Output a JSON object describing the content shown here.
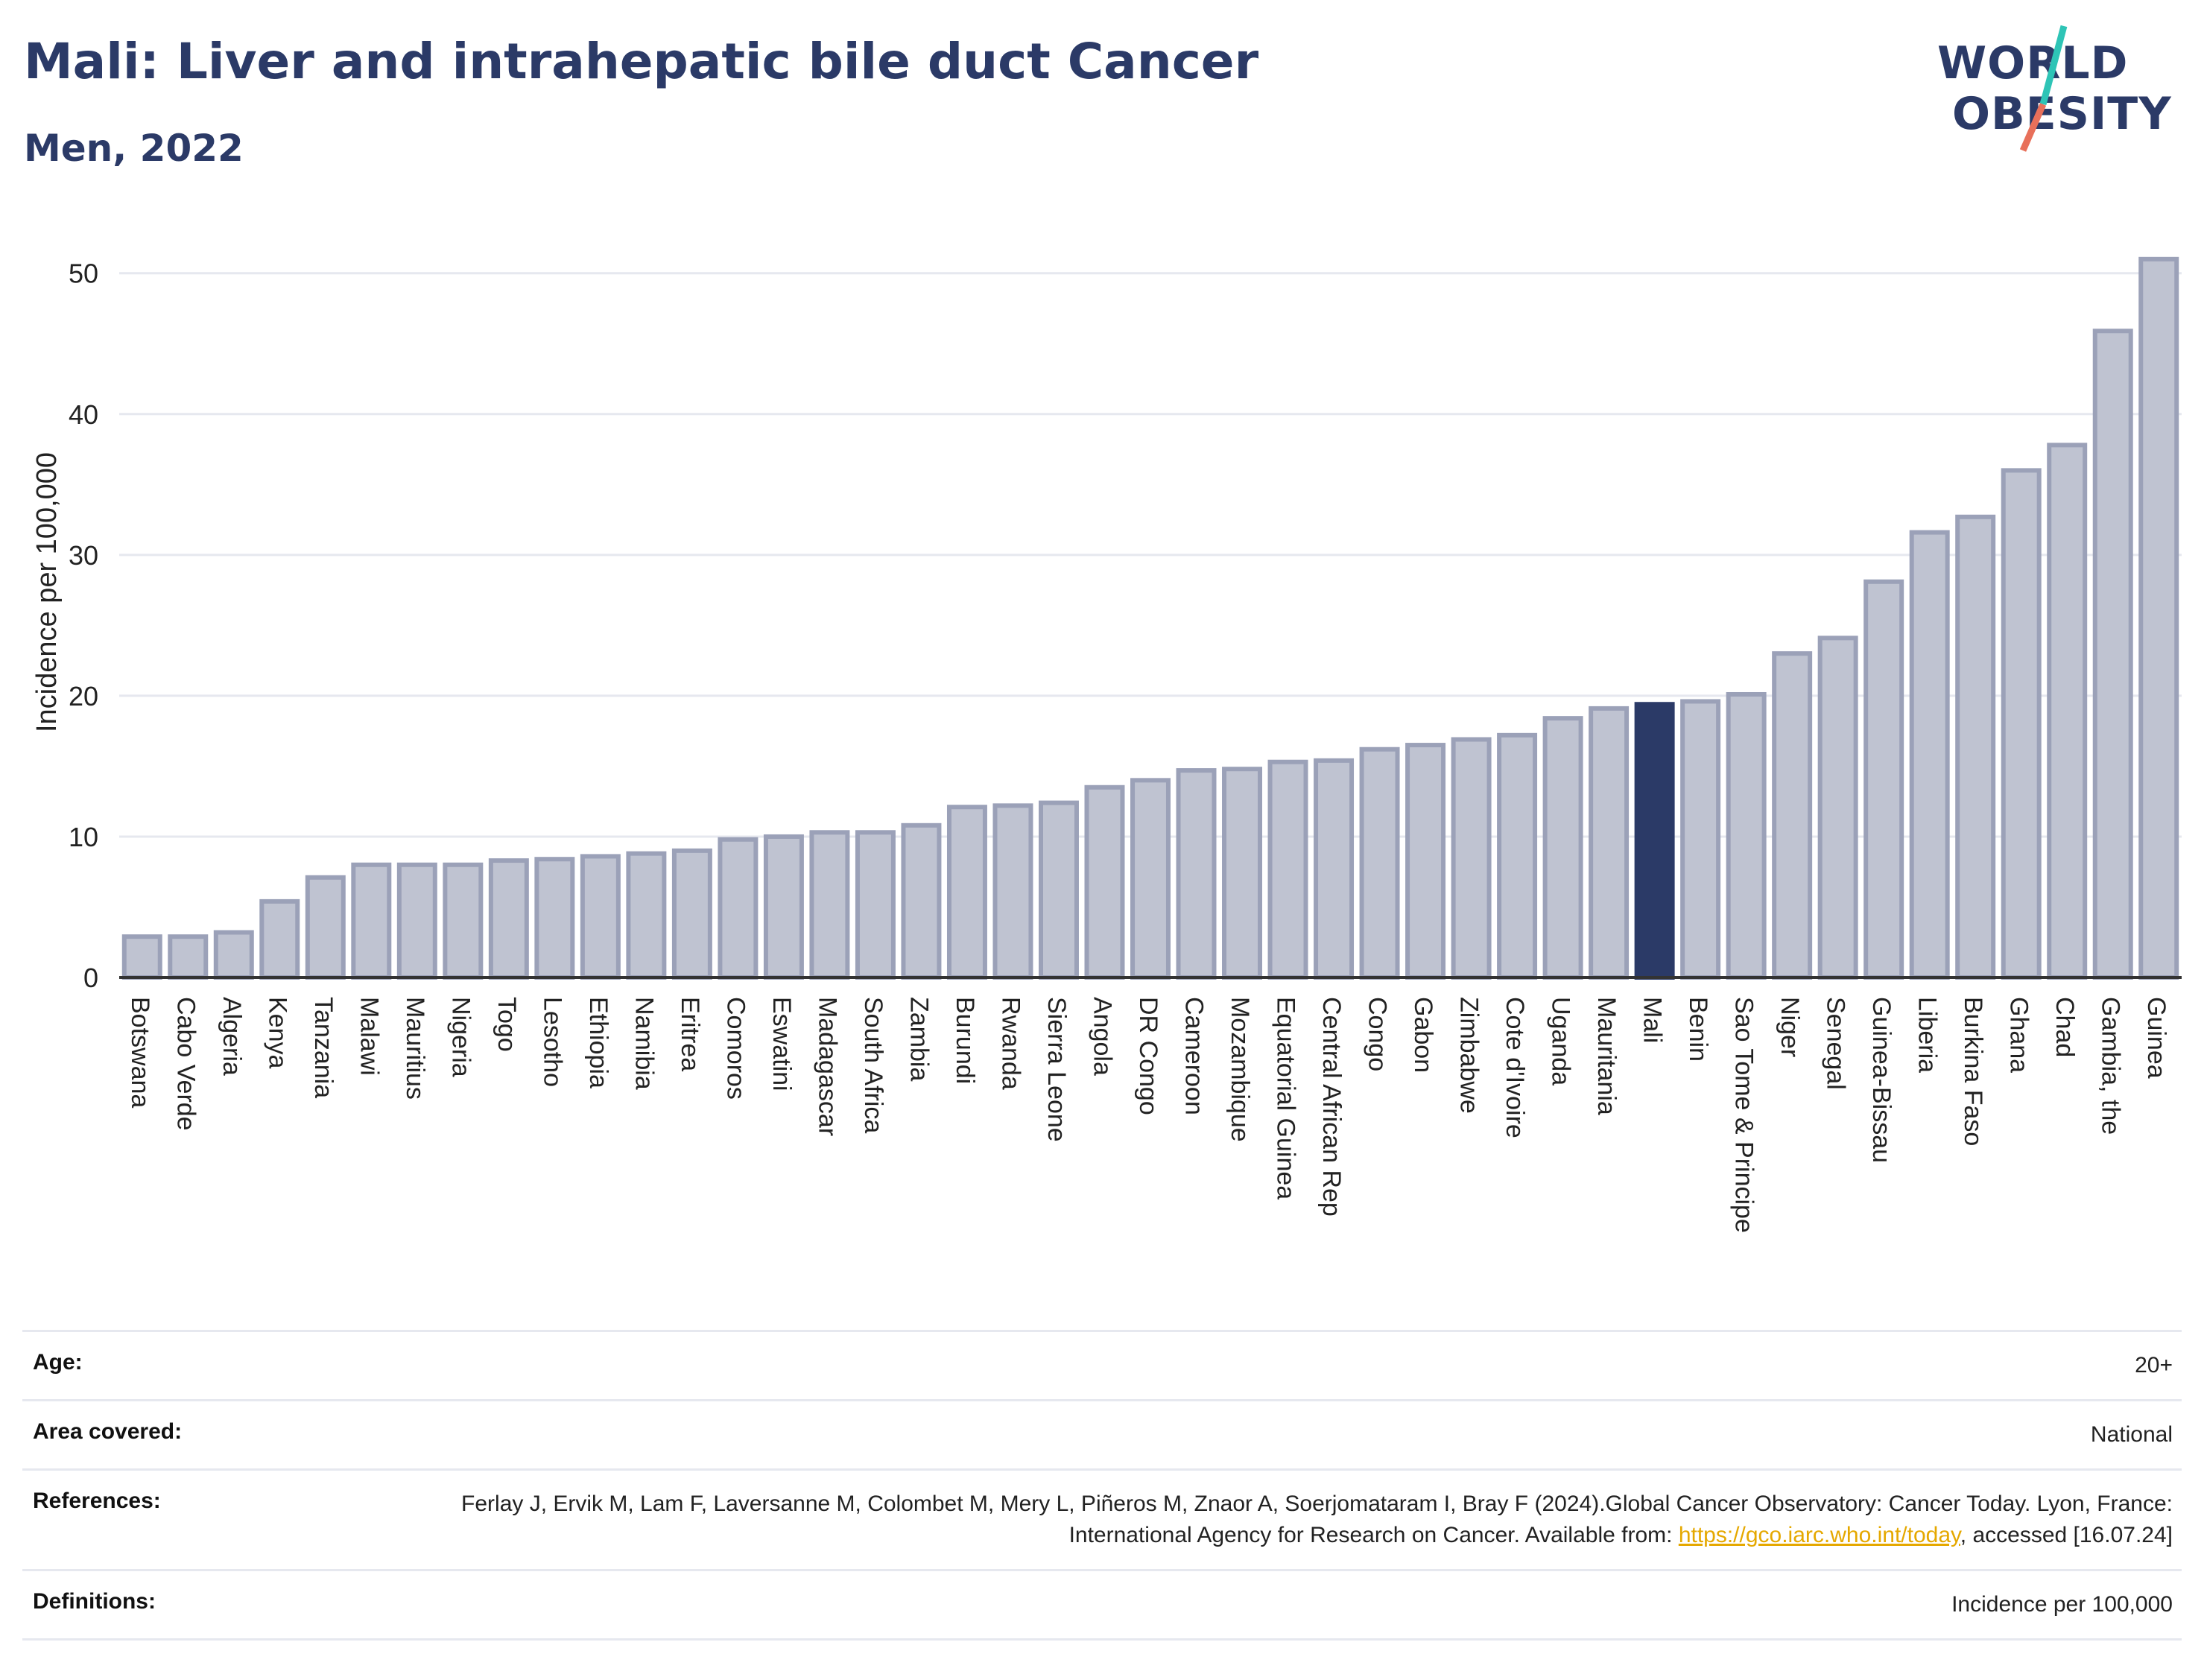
{
  "header": {
    "title": "Mali: Liver and intrahepatic bile duct Cancer",
    "subtitle": "Men, 2022"
  },
  "logo": {
    "line1": "WORLD",
    "line2": "OBESITY",
    "colors": {
      "text": "#2b3a67",
      "slash_top": "#2ec4b6",
      "slash_bottom": "#e8705a"
    }
  },
  "colors": {
    "bar_fill": "#bfc3d1",
    "bar_stroke": "#9ba1b8",
    "highlight_fill": "#2b3a67",
    "grid": "#e6e8ef",
    "axis": "#333333"
  },
  "chart_data": {
    "type": "bar",
    "title": "Mali: Liver and intrahepatic bile duct Cancer",
    "subtitle": "Men, 2022",
    "xlabel": "",
    "ylabel": "Incidence per 100,000",
    "ylim": [
      0,
      53
    ],
    "yticks": [
      0,
      10,
      20,
      30,
      40,
      50
    ],
    "grid": true,
    "highlight": "Mali",
    "categories": [
      "Botswana",
      "Cabo Verde",
      "Algeria",
      "Kenya",
      "Tanzania",
      "Malawi",
      "Mauritius",
      "Nigeria",
      "Togo",
      "Lesotho",
      "Ethiopia",
      "Namibia",
      "Eritrea",
      "Comoros",
      "Eswatini",
      "Madagascar",
      "South Africa",
      "Zambia",
      "Burundi",
      "Rwanda",
      "Sierra Leone",
      "Angola",
      "DR Congo",
      "Cameroon",
      "Mozambique",
      "Equatorial Guinea",
      "Central African Rep",
      "Congo",
      "Gabon",
      "Zimbabwe",
      "Cote d'Ivoire",
      "Uganda",
      "Mauritania",
      "Mali",
      "Benin",
      "Sao Tome & Principe",
      "Niger",
      "Senegal",
      "Guinea-Bissau",
      "Liberia",
      "Burkina Faso",
      "Ghana",
      "Chad",
      "Gambia, the",
      "Guinea"
    ],
    "values": [
      2.9,
      2.9,
      3.2,
      5.4,
      7.1,
      8.0,
      8.0,
      8.0,
      8.3,
      8.4,
      8.6,
      8.8,
      9.0,
      9.8,
      10.0,
      10.3,
      10.3,
      10.8,
      12.1,
      12.2,
      12.4,
      13.5,
      14.0,
      14.7,
      14.8,
      15.3,
      15.4,
      16.2,
      16.5,
      16.9,
      17.2,
      18.4,
      19.1,
      19.4,
      19.6,
      20.1,
      23.0,
      24.1,
      28.1,
      31.6,
      32.7,
      36.0,
      37.8,
      45.9,
      51.0
    ]
  },
  "info": {
    "age_label": "Age:",
    "age_value": "20+",
    "area_label": "Area covered:",
    "area_value": "National",
    "references_label": "References:",
    "references_value_1": "Ferlay J, Ervik M, Lam F, Laversanne M, Colombet M, Mery L, Piñeros M, Znaor A, Soerjomataram I, Bray F (2024).Global Cancer Observatory: Cancer Today. Lyon, France: International Agency for Research on Cancer. Available from: ",
    "references_link": "https://gco.iarc.who.int/today",
    "references_value_2": ", accessed [16.07.24]",
    "definitions_label": "Definitions:",
    "definitions_value": "Incidence per 100,000"
  }
}
